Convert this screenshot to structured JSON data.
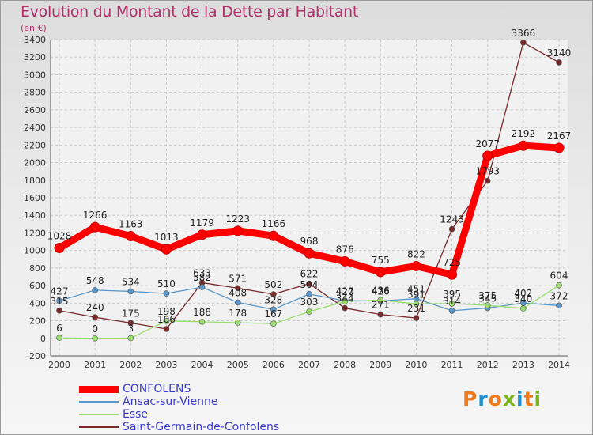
{
  "title": "Evolution du Montant de la Dette par Habitant",
  "subtitle": "(en €)",
  "logo": {
    "text": "Proxiti",
    "colors": [
      "#f07a1a",
      "#1f8fd6",
      "#f07a1a",
      "#7ab51d",
      "#1f8fd6",
      "#f07a1a",
      "#7ab51d"
    ]
  },
  "chart_data": {
    "type": "line",
    "x": [
      "2000",
      "2001",
      "2002",
      "2003",
      "2004",
      "2005",
      "2006",
      "2007",
      "2008",
      "2009",
      "2010",
      "2011",
      "2012",
      "2013",
      "2014"
    ],
    "ylim": [
      -200,
      3400
    ],
    "y_ticks": [
      "-200",
      "0",
      "200",
      "400",
      "600",
      "800",
      "1000",
      "1200",
      "1400",
      "1600",
      "1800",
      "2000",
      "2200",
      "2400",
      "2600",
      "2800",
      "3000",
      "3200",
      "3400"
    ],
    "grid": true,
    "legend_position": "bottom-left",
    "series": [
      {
        "name": "CONFOLENS",
        "color": "#ff0000",
        "values": [
          1028,
          1266,
          1163,
          1013,
          1179,
          1223,
          1166,
          968,
          876,
          755,
          822,
          725,
          2077,
          2192,
          2167
        ],
        "labels": [
          "1028",
          "1266",
          "1163",
          "1013",
          "1179",
          "1223",
          "1166",
          "968",
          "876",
          "755",
          "822",
          "725",
          "2077",
          "2192",
          "2167"
        ]
      },
      {
        "name": "Ansac-sur-Vienne",
        "color": "#5b97c8",
        "values": [
          427,
          548,
          534,
          510,
          582,
          408,
          328,
          504,
          427,
          426,
          451,
          314,
          345,
          402,
          372
        ],
        "labels": [
          "427",
          "548",
          "534",
          "510",
          "582",
          "408",
          "328",
          "504",
          "427",
          "426",
          "451",
          "314",
          "345",
          "402",
          "372"
        ]
      },
      {
        "name": "Esse",
        "color": "#99dd6e",
        "values": [
          6,
          0,
          3,
          198,
          188,
          178,
          167,
          303,
          420,
          436,
          391,
          395,
          375,
          340,
          604
        ],
        "labels": [
          "6",
          "0",
          "3",
          "198",
          "188",
          "178",
          "167",
          "303",
          "420",
          "436",
          "391",
          "395",
          "375",
          "340",
          "604"
        ]
      },
      {
        "name": "Saint-Germain-de-Confolens",
        "color": "#7a2a2a",
        "values": [
          315,
          240,
          175,
          106,
          633,
          571,
          502,
          622,
          344,
          271,
          231,
          1243,
          1793,
          3366,
          3140
        ],
        "labels": [
          "315",
          "240",
          "175",
          "106",
          "633",
          "571",
          "502",
          "622",
          "344",
          "271",
          "231",
          "1243",
          "1793",
          "3366",
          "3140"
        ]
      }
    ]
  }
}
